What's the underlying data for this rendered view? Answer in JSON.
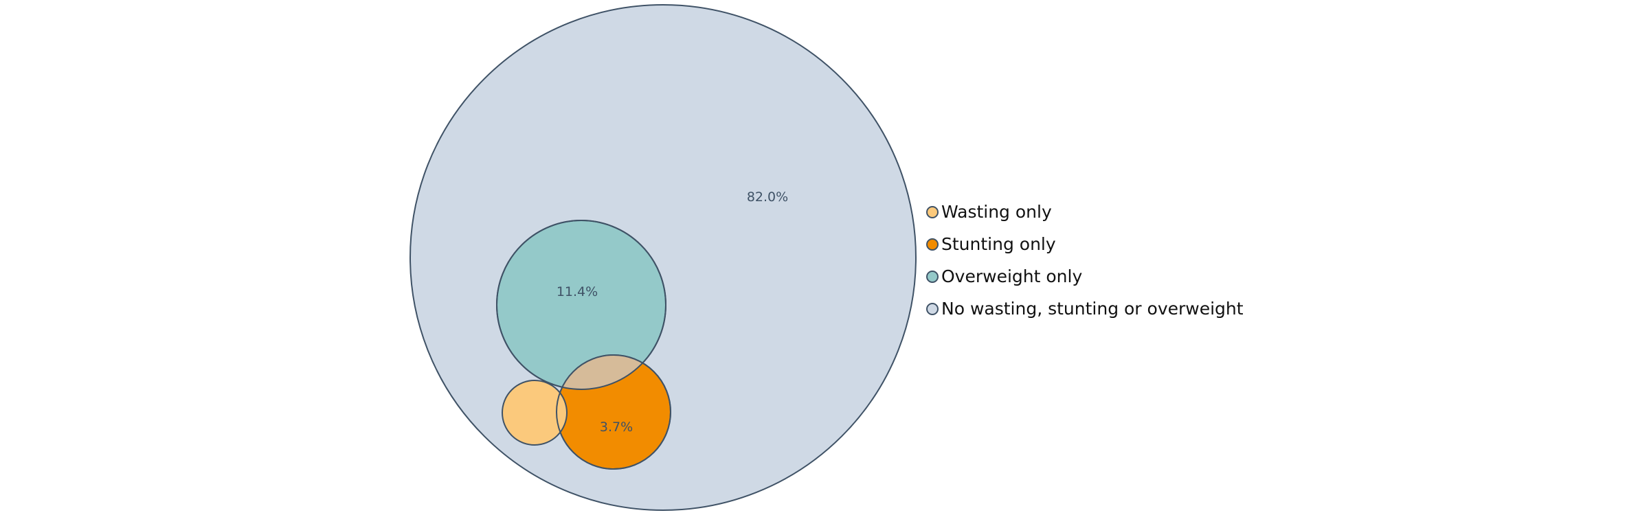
{
  "chart_data": {
    "type": "venn-bubble",
    "title": "",
    "series": [
      {
        "name": "Wasting only",
        "color": "#fbc97c"
      },
      {
        "name": "Stunting only",
        "color": "#f28c00"
      },
      {
        "name": "Overweight only",
        "color": "#94c9c9"
      },
      {
        "name": "No wasting, stunting or overweight",
        "color": "#cfd9e5"
      }
    ],
    "labels": [
      {
        "text": "82.0%",
        "series": "No wasting, stunting or overweight"
      },
      {
        "text": "11.4%",
        "series": "Overweight only"
      },
      {
        "text": "3.7%",
        "series": "Stunting only"
      }
    ],
    "legend_position": "right",
    "overlap_color": "#d6bb99",
    "stroke_color": "#3f5266",
    "label_color": "#3f5266"
  }
}
